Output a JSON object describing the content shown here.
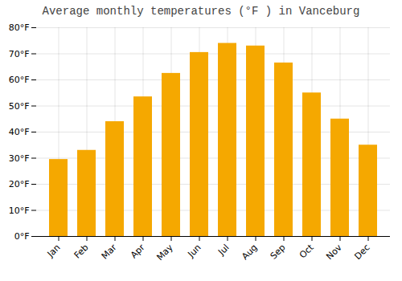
{
  "chart_data": {
    "type": "bar",
    "title": "Average monthly temperatures (°F ) in Vanceburg",
    "categories": [
      "Jan",
      "Feb",
      "Mar",
      "Apr",
      "May",
      "Jun",
      "Jul",
      "Aug",
      "Sep",
      "Oct",
      "Nov",
      "Dec"
    ],
    "values": [
      29.5,
      33.0,
      44.0,
      53.5,
      62.5,
      70.5,
      74.0,
      73.0,
      66.5,
      55.0,
      45.0,
      35.0
    ],
    "color": "#F5A800",
    "ylim": [
      0,
      80
    ],
    "yticks": [
      {
        "value": 0,
        "label": "0°F"
      },
      {
        "value": 10,
        "label": "10°F"
      },
      {
        "value": 20,
        "label": "20°F"
      },
      {
        "value": 30,
        "label": "30°F"
      },
      {
        "value": 40,
        "label": "40°F"
      },
      {
        "value": 50,
        "label": "50°F"
      },
      {
        "value": 60,
        "label": "60°F"
      },
      {
        "value": 70,
        "label": "70°F"
      },
      {
        "value": 80,
        "label": "80°F"
      }
    ],
    "grid": true
  }
}
